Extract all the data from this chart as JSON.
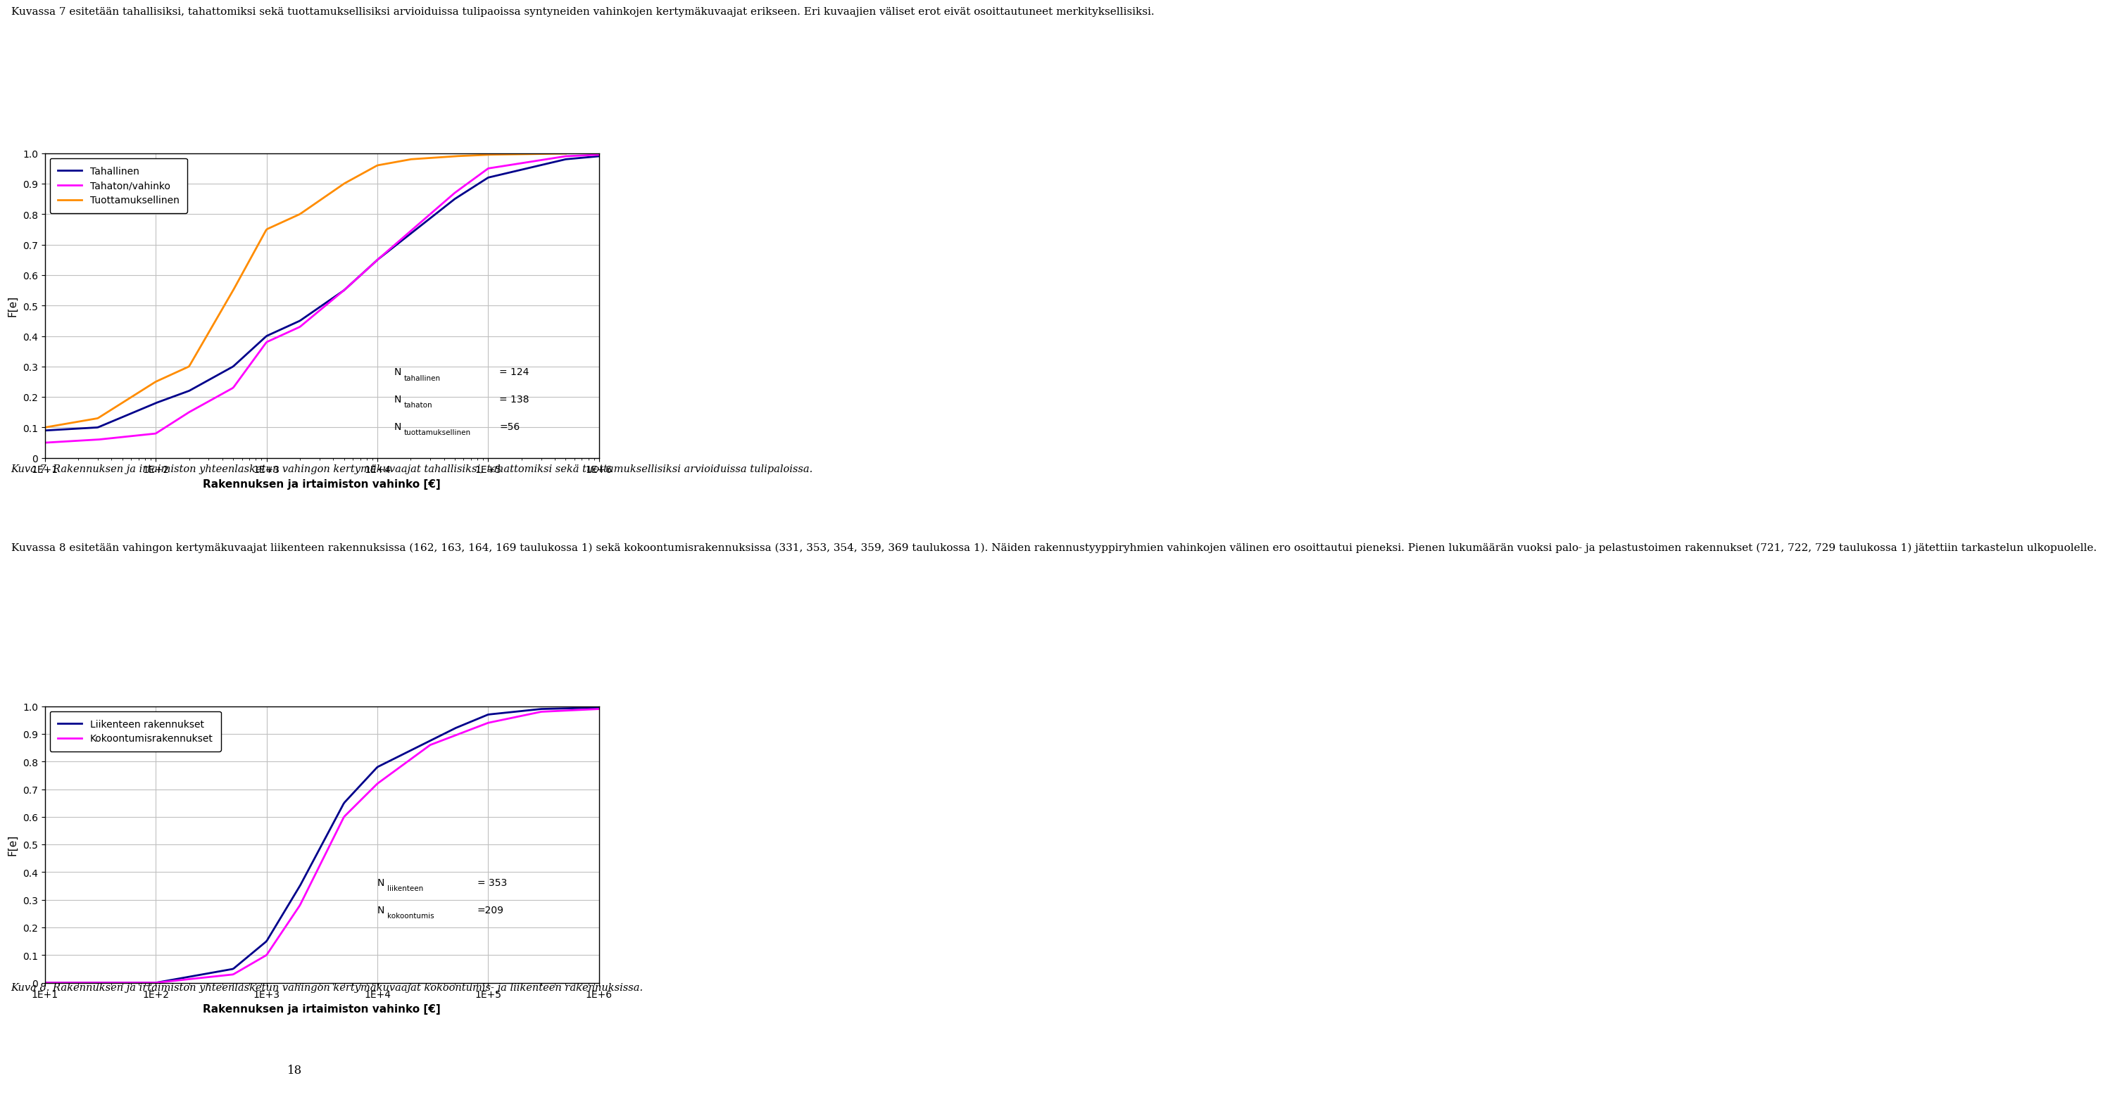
{
  "page_width": 9.6,
  "page_height": 16.04,
  "text_top": "Kuvassa 7 esitetään tahallisiksi, tahattomiksi sekä tuottamuksellisiksi arvioiduissa tulipaoissa syntyneiden vahinkojen kertymäkuvaajat erikseen. Eri kuvaajien väliset erot eivät osoittautuneet merkityksellisiksi.",
  "text_mid": "Kuva 7. Rakennuksen ja irtaimiston yhteenlasketun vahingon kertymäkuvaajat tahallisiksi, tahattomiksi sekä tuottamuksellisiksi arvioiduissa tulipaloissa.",
  "text_mid2": "Kuvassa 8 esitetään vahingon kertymäkuvaajat liikenteen rakennuksissa (162, 163, 164, 169 taulukossa 1) sekä kokoontumisrakennuksissa (331, 353, 354, 359, 369 taulukossa 1). Näiden rakennustyyppiryhmien vahinkojen välinen ero osoittautui pieneksi. Pienen lukumäärän vuoksi palo- ja pelastustoimen rakennukset (721, 722, 729 taulukossa 1) jätettiin tarkastelun ulkopuolelle.",
  "text_bottom": "Kuva 8. Rakennuksen ja irtaimiston yhteenlasketun vahingon kertymäkuvaajat kokoontumis- ja liikenteen rakennuksissa.",
  "chart1": {
    "xlabel": "Rakennuksen ja irtaimiston vahinko [€]",
    "ylabel": "F[e]",
    "ylim": [
      0,
      1.0
    ],
    "yticks": [
      0,
      0.1,
      0.2,
      0.3,
      0.4,
      0.5,
      0.6,
      0.7,
      0.8,
      0.9,
      1.0
    ],
    "xtick_labels": [
      "1E+1",
      "1E+2",
      "1E+3",
      "1E+4",
      "1E+5",
      "1E+6"
    ],
    "legend": [
      "Tahallinen",
      "Tahaton/vahinko",
      "Tuottamuksellinen"
    ],
    "line_colors": [
      "#00008B",
      "#FF00FF",
      "#FF8C00"
    ],
    "ann1_label": "tahallinen",
    "ann1_val": "= 124",
    "ann2_label": "tahaton",
    "ann2_val": "= 138",
    "ann3_label": "tuottamuksellinen",
    "ann3_val": "=56"
  },
  "chart2": {
    "xlabel": "Rakennuksen ja irtaimiston vahinko [€]",
    "ylabel": "F[e]",
    "ylim": [
      0,
      1.0
    ],
    "yticks": [
      0,
      0.1,
      0.2,
      0.3,
      0.4,
      0.5,
      0.6,
      0.7,
      0.8,
      0.9,
      1.0
    ],
    "xtick_labels": [
      "1E+1",
      "1E+2",
      "1E+3",
      "1E+4",
      "1E+5",
      "1E+6"
    ],
    "legend": [
      "Liikenteen rakennukset",
      "Kokoontumisrakennukset"
    ],
    "line_colors": [
      "#00008B",
      "#FF00FF"
    ],
    "ann1_label": "liikenteen",
    "ann1_val": "= 353",
    "ann2_label": "kokoontumis",
    "ann2_val": "=209"
  },
  "background_color": "#ffffff",
  "chart_bg": "#ffffff",
  "grid_color": "#C0C0C0",
  "border_color": "#000000",
  "page_number": "18"
}
